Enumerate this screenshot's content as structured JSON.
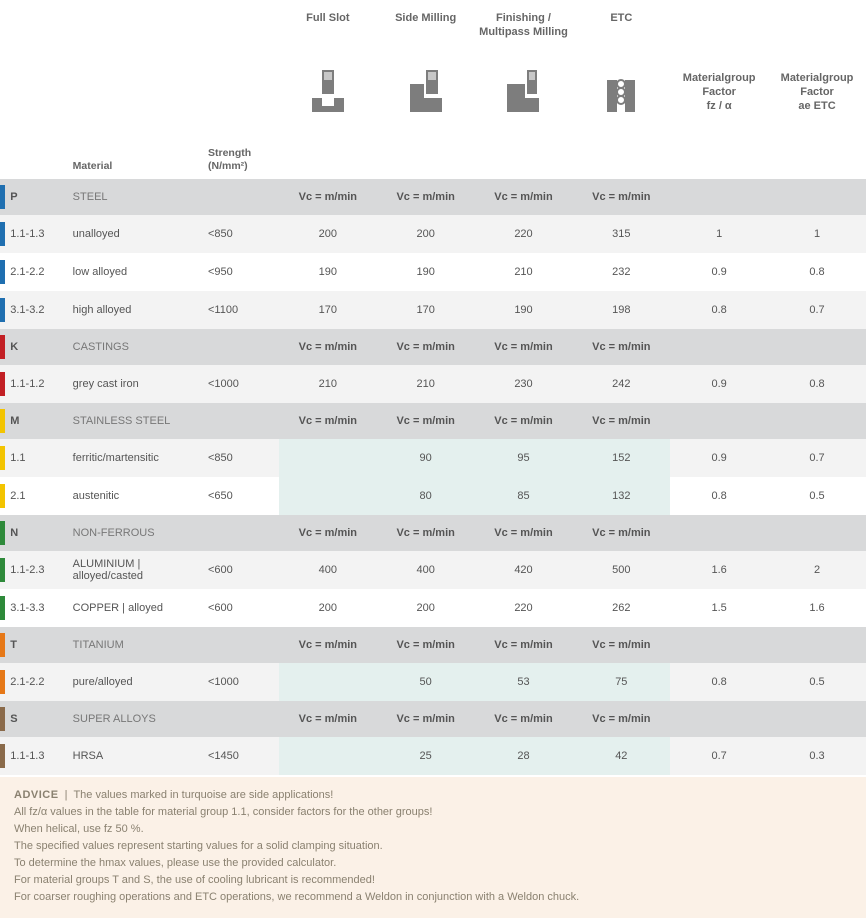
{
  "headers": {
    "material_label": "Material",
    "strength_label": "Strength\n(N/mm²)",
    "ops": [
      "Full Slot",
      "Side Milling",
      "Finishing /\nMultipass Milling",
      "ETC"
    ],
    "factor1": "Materialgroup\nFactor\nfz / α",
    "factor2": "Materialgroup\nFactor\nae ETC",
    "vc_label": "Vc = m/min"
  },
  "icons": {
    "base_fill": "#7d7d7d",
    "bg": "#ffffff"
  },
  "groups": [
    {
      "code": "P",
      "name": "STEEL",
      "bar_color": "#1f6fb0",
      "rows": [
        {
          "code": "1.1-1.3",
          "material": "unalloyed",
          "strength": "<850",
          "vals": [
            "200",
            "200",
            "220",
            "315"
          ],
          "f1": "1",
          "f2": "1"
        },
        {
          "code": "2.1-2.2",
          "material": "low alloyed",
          "strength": "<950",
          "vals": [
            "190",
            "190",
            "210",
            "232"
          ],
          "f1": "0.9",
          "f2": "0.8"
        },
        {
          "code": "3.1-3.2",
          "material": "high alloyed",
          "strength": "<1100",
          "vals": [
            "170",
            "170",
            "190",
            "198"
          ],
          "f1": "0.8",
          "f2": "0.7"
        }
      ]
    },
    {
      "code": "K",
      "name": "CASTINGS",
      "bar_color": "#c21f24",
      "rows": [
        {
          "code": "1.1-1.2",
          "material": "grey cast iron",
          "strength": "<1000",
          "vals": [
            "210",
            "210",
            "230",
            "242"
          ],
          "f1": "0.9",
          "f2": "0.8"
        }
      ]
    },
    {
      "code": "M",
      "name": "STAINLESS STEEL",
      "bar_color": "#f3c400",
      "rows": [
        {
          "code": "1.1",
          "material": "ferritic/martensitic",
          "strength": "<850",
          "vals": [
            "",
            "90",
            "95",
            "152"
          ],
          "side": true,
          "f1": "0.9",
          "f2": "0.7"
        },
        {
          "code": "2.1",
          "material": "austenitic",
          "strength": "<650",
          "vals": [
            "",
            "80",
            "85",
            "132"
          ],
          "side": true,
          "f1": "0.8",
          "f2": "0.5"
        }
      ]
    },
    {
      "code": "N",
      "name": "NON-FERROUS",
      "bar_color": "#2e8a3a",
      "rows": [
        {
          "code": "1.1-2.3",
          "material": "ALUMINIUM |\nalloyed/casted",
          "strength": "<600",
          "vals": [
            "400",
            "400",
            "420",
            "500"
          ],
          "f1": "1.6",
          "f2": "2"
        },
        {
          "code": "3.1-3.3",
          "material": "COPPER | alloyed",
          "strength": "<600",
          "vals": [
            "200",
            "200",
            "220",
            "262"
          ],
          "f1": "1.5",
          "f2": "1.6"
        }
      ]
    },
    {
      "code": "T",
      "name": "TITANIUM",
      "bar_color": "#e67817",
      "rows": [
        {
          "code": "2.1-2.2",
          "material": "pure/alloyed",
          "strength": "<1000",
          "vals": [
            "",
            "50",
            "53",
            "75"
          ],
          "side": true,
          "f1": "0.8",
          "f2": "0.5"
        }
      ]
    },
    {
      "code": "S",
      "name": "SUPER ALLOYS",
      "bar_color": "#8a6a4a",
      "rows": [
        {
          "code": "1.1-1.3",
          "material": "HRSA",
          "strength": "<1450",
          "vals": [
            "",
            "25",
            "28",
            "42"
          ],
          "side": true,
          "f1": "0.7",
          "f2": "0.3"
        }
      ]
    }
  ],
  "advice": {
    "title": "ADVICE",
    "lines": [
      "The values marked in turquoise are side applications!",
      "All fz/α values in the table for material group 1.1, consider factors for the other groups!",
      "When helical, use fz 50 %.",
      "The specified values represent starting values for a solid clamping situation.",
      "To determine the hmax values, please use the provided calculator.",
      "For material groups T and S, the use of cooling lubricant is recommended!",
      "For coarser roughing operations and ETC operations, we recommend a Weldon in conjunction with a Weldon chuck."
    ]
  }
}
